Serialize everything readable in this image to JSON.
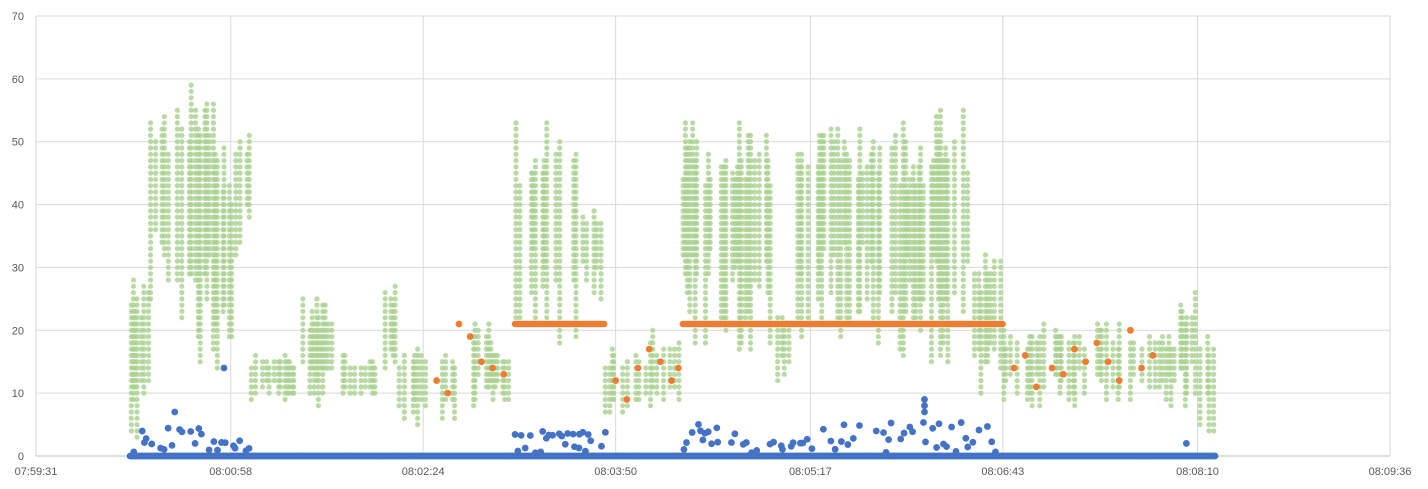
{
  "chart_data": {
    "type": "scatter",
    "title": "",
    "xlabel": "",
    "ylabel": "",
    "x_axis": {
      "type": "time",
      "min": "07:59:31",
      "max": "08:09:36",
      "ticks": [
        "07:59:31",
        "08:00:58",
        "08:02:24",
        "08:03:50",
        "08:05:17",
        "08:06:43",
        "08:08:10",
        "08:09:36"
      ]
    },
    "y_axis": {
      "min": 0,
      "max": 70,
      "ticks": [
        "0",
        "10",
        "20",
        "30",
        "40",
        "50",
        "60",
        "70"
      ]
    },
    "grid": true,
    "legend": "none",
    "series": [
      {
        "color": "#a9d18e",
        "marker": "circle",
        "style": "dense vertical scatter (min/max bands per time step)",
        "bands": [
          {
            "start": "08:00:13",
            "end": "08:00:22",
            "low": 0,
            "high": 30
          },
          {
            "start": "08:00:22",
            "end": "08:00:40",
            "low": 22,
            "high": 55
          },
          {
            "start": "08:00:40",
            "end": "08:00:52",
            "low": 15,
            "high": 59
          },
          {
            "start": "08:00:52",
            "end": "08:01:00",
            "low": 5,
            "high": 53
          },
          {
            "start": "08:01:00",
            "end": "08:01:07",
            "low": 30,
            "high": 53
          },
          {
            "start": "08:01:07",
            "end": "08:01:30",
            "low": 9,
            "high": 16
          },
          {
            "start": "08:01:30",
            "end": "08:01:45",
            "low": 8,
            "high": 25
          },
          {
            "start": "08:01:45",
            "end": "08:02:05",
            "low": 8,
            "high": 16
          },
          {
            "start": "08:02:05",
            "end": "08:02:12",
            "low": 10,
            "high": 28
          },
          {
            "start": "08:02:12",
            "end": "08:02:40",
            "low": 5,
            "high": 17
          },
          {
            "start": "08:02:40",
            "end": "08:02:55",
            "low": 8,
            "high": 21
          },
          {
            "start": "08:02:55",
            "end": "08:03:05",
            "low": 8,
            "high": 17
          },
          {
            "start": "08:03:05",
            "end": "08:03:20",
            "low": 19,
            "high": 53
          },
          {
            "start": "08:03:20",
            "end": "08:03:35",
            "low": 18,
            "high": 57
          },
          {
            "start": "08:03:35",
            "end": "08:03:45",
            "low": 24,
            "high": 40
          },
          {
            "start": "08:03:45",
            "end": "08:04:05",
            "low": 5,
            "high": 17
          },
          {
            "start": "08:04:05",
            "end": "08:04:20",
            "low": 5,
            "high": 20
          },
          {
            "start": "08:04:20",
            "end": "08:04:45",
            "low": 16,
            "high": 54
          },
          {
            "start": "08:04:45",
            "end": "08:05:00",
            "low": 17,
            "high": 53
          },
          {
            "start": "08:05:00",
            "end": "08:05:10",
            "low": 12,
            "high": 23
          },
          {
            "start": "08:05:10",
            "end": "08:05:45",
            "low": 18,
            "high": 54
          },
          {
            "start": "08:05:45",
            "end": "08:06:05",
            "low": 16,
            "high": 53
          },
          {
            "start": "08:06:05",
            "end": "08:06:30",
            "low": 14,
            "high": 55
          },
          {
            "start": "08:06:30",
            "end": "08:06:43",
            "low": 9,
            "high": 33
          },
          {
            "start": "08:06:43",
            "end": "08:07:15",
            "low": 7,
            "high": 21
          },
          {
            "start": "08:07:15",
            "end": "08:07:45",
            "low": 8,
            "high": 21
          },
          {
            "start": "08:07:45",
            "end": "08:08:00",
            "low": 8,
            "high": 20
          },
          {
            "start": "08:08:00",
            "end": "08:08:10",
            "low": 8,
            "high": 26
          },
          {
            "start": "08:08:10",
            "end": "08:08:18",
            "low": 4,
            "high": 20
          }
        ]
      },
      {
        "color": "#ed7d31",
        "marker": "circle",
        "plateaus": [
          {
            "start": "08:03:05",
            "end": "08:03:45",
            "y": 21
          },
          {
            "start": "08:04:20",
            "end": "08:06:43",
            "y": 21
          }
        ],
        "points": [
          {
            "x": "08:02:30",
            "y": 12
          },
          {
            "x": "08:02:35",
            "y": 10
          },
          {
            "x": "08:02:40",
            "y": 21
          },
          {
            "x": "08:02:45",
            "y": 19
          },
          {
            "x": "08:02:50",
            "y": 15
          },
          {
            "x": "08:02:55",
            "y": 14
          },
          {
            "x": "08:03:00",
            "y": 13
          },
          {
            "x": "08:03:50",
            "y": 12
          },
          {
            "x": "08:03:55",
            "y": 9
          },
          {
            "x": "08:04:00",
            "y": 14
          },
          {
            "x": "08:04:05",
            "y": 17
          },
          {
            "x": "08:04:10",
            "y": 15
          },
          {
            "x": "08:04:15",
            "y": 12
          },
          {
            "x": "08:04:18",
            "y": 14
          },
          {
            "x": "08:06:48",
            "y": 14
          },
          {
            "x": "08:06:53",
            "y": 16
          },
          {
            "x": "08:06:58",
            "y": 11
          },
          {
            "x": "08:07:05",
            "y": 14
          },
          {
            "x": "08:07:10",
            "y": 13
          },
          {
            "x": "08:07:15",
            "y": 17
          },
          {
            "x": "08:07:20",
            "y": 15
          },
          {
            "x": "08:07:25",
            "y": 18
          },
          {
            "x": "08:07:30",
            "y": 15
          },
          {
            "x": "08:07:35",
            "y": 12
          },
          {
            "x": "08:07:40",
            "y": 20
          },
          {
            "x": "08:07:45",
            "y": 14
          },
          {
            "x": "08:07:50",
            "y": 16
          }
        ]
      },
      {
        "color": "#4472c4",
        "marker": "circle",
        "baseline": {
          "start": "08:00:13",
          "end": "08:08:18",
          "y": 0
        },
        "spikes": [
          {
            "start": "08:00:13",
            "end": "08:01:07",
            "max": 4
          },
          {
            "start": "08:03:05",
            "end": "08:03:45",
            "max": 4
          },
          {
            "start": "08:04:20",
            "end": "08:06:43",
            "max": 5
          }
        ],
        "points": [
          {
            "x": "08:00:33",
            "y": 7
          },
          {
            "x": "08:00:55",
            "y": 14
          },
          {
            "x": "08:06:08",
            "y": 9
          },
          {
            "x": "08:06:08",
            "y": 8
          },
          {
            "x": "08:06:08",
            "y": 7
          },
          {
            "x": "08:08:05",
            "y": 2
          }
        ]
      }
    ]
  }
}
